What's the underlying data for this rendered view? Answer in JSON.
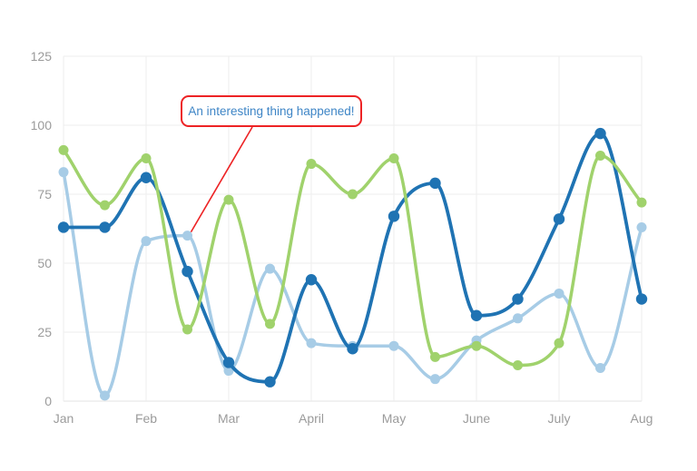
{
  "chart_data": {
    "type": "line",
    "curve": "spline-monotone",
    "title": "",
    "xlabel": "",
    "ylabel": "",
    "x_labels": [
      "Jan",
      "Feb",
      "Mar",
      "April",
      "May",
      "June",
      "July",
      "Aug"
    ],
    "points_per_month_interval": 2,
    "x_point_positions": [
      0,
      0.5,
      1,
      1.5,
      2,
      2.5,
      3,
      3.5,
      4,
      4.5,
      5,
      5.5,
      6,
      6.5,
      7
    ],
    "y_ticks": [
      0,
      25,
      50,
      75,
      100,
      125
    ],
    "ylim": [
      0,
      125
    ],
    "grid": true,
    "legend": false,
    "series": [
      {
        "name": "light-blue",
        "color": "#a7cce6",
        "values": [
          83,
          2,
          58,
          60,
          11,
          48,
          21,
          20,
          20,
          8,
          22,
          30,
          39,
          12,
          63
        ]
      },
      {
        "name": "dark-blue",
        "color": "#1f73b3",
        "values": [
          63,
          63,
          81,
          47,
          14,
          7,
          44,
          19,
          67,
          79,
          31,
          37,
          66,
          97,
          37
        ]
      },
      {
        "name": "green",
        "color": "#a0d26c",
        "values": [
          91,
          71,
          88,
          26,
          73,
          28,
          86,
          75,
          88,
          16,
          20,
          13,
          21,
          89,
          72
        ]
      }
    ],
    "annotation": {
      "text": "An interesting thing happened!",
      "target_series": "light-blue",
      "target_point_index": 3,
      "target_value": 60,
      "border_color": "#ed2325",
      "text_color": "#3e85c6",
      "pointer_color": "#ed2325"
    }
  },
  "style": {
    "background": "#ffffff",
    "grid_color": "#ededed",
    "axis_line_color": "#e3e3e3",
    "tick_label_color": "#9b9b9b"
  }
}
